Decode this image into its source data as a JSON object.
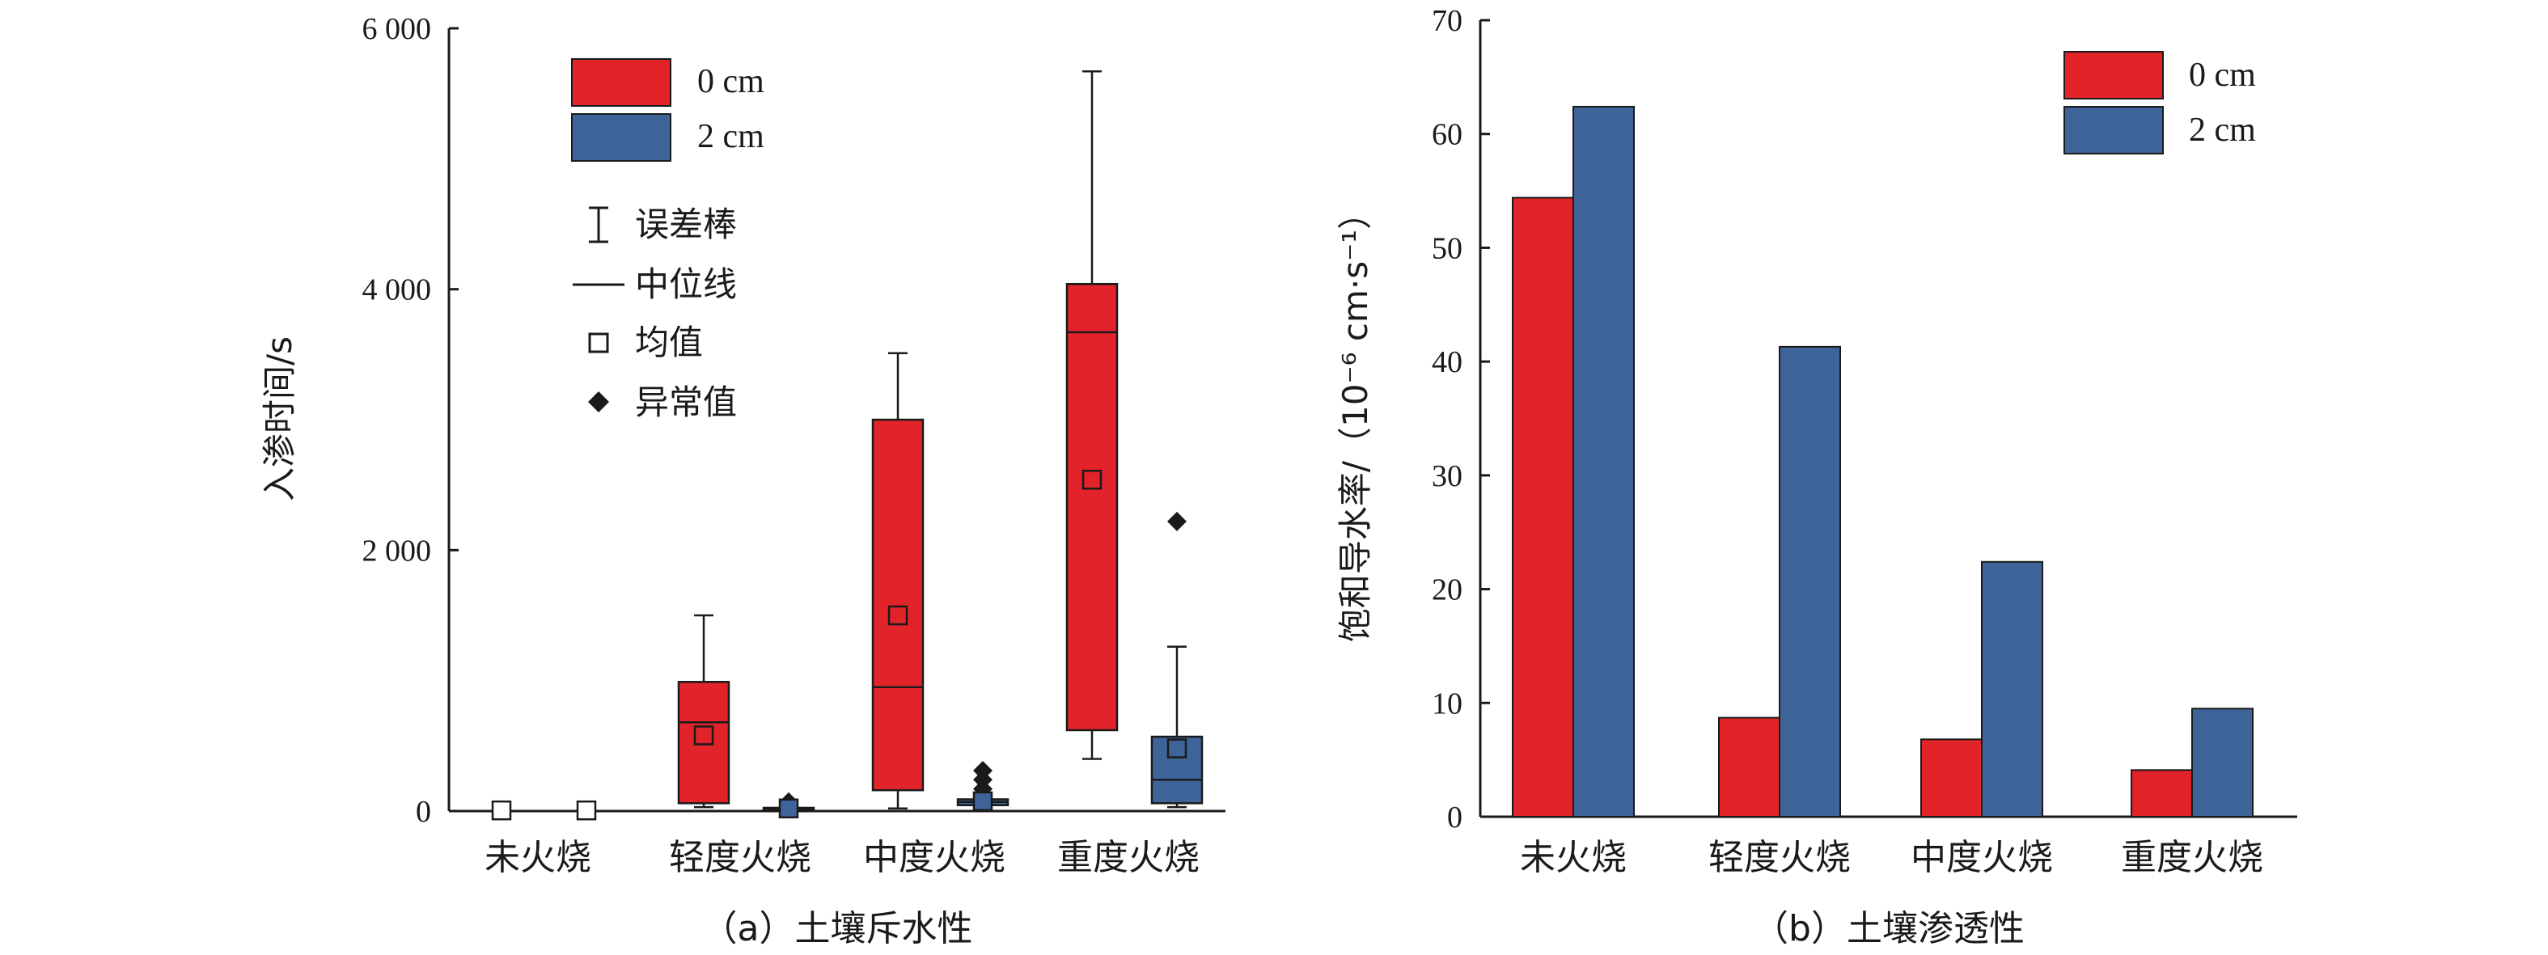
{
  "colors": {
    "red": "#e3232a",
    "blue": "#3f6499",
    "edge": "#1a1a1a"
  },
  "legend_swatches": {
    "s0": "0 cm",
    "s1": "2 cm"
  },
  "legend_symbols": {
    "error": "误差棒",
    "median": "中位线",
    "mean": "均值",
    "outlier": "异常值",
    "icons": [
      "error-bar-icon",
      "median-line-icon",
      "mean-square-icon",
      "outlier-diamond-icon"
    ]
  },
  "chart_data": [
    {
      "type": "box",
      "caption": "（a）土壤斥水性",
      "ylabel": "入渗时间/s",
      "ylim": [
        0,
        6000
      ],
      "yticks": [
        0,
        2000,
        4000,
        6000
      ],
      "ytick_labels": [
        "0",
        "2 000",
        "4 000",
        "6 000"
      ],
      "categories": [
        "未火烧",
        "轻度火烧",
        "中度火烧",
        "重度火烧"
      ],
      "series": [
        {
          "name": "0 cm",
          "color": "#e3232a",
          "boxes": [
            {
              "min": 0,
              "q1": 0,
              "median": 0,
              "q3": 0,
              "max": 0,
              "mean": 5,
              "outliers": [
                10
              ]
            },
            {
              "min": 30,
              "q1": 60,
              "median": 680,
              "q3": 990,
              "max": 1500,
              "mean": 580,
              "outliers": []
            },
            {
              "min": 20,
              "q1": 160,
              "median": 950,
              "q3": 3000,
              "max": 3510,
              "mean": 1500,
              "outliers": []
            },
            {
              "min": 400,
              "q1": 620,
              "median": 3670,
              "q3": 4040,
              "max": 5670,
              "mean": 2540,
              "outliers": []
            }
          ]
        },
        {
          "name": "2 cm",
          "color": "#3f6499",
          "boxes": [
            {
              "min": 0,
              "q1": 0,
              "median": 0,
              "q3": 0,
              "max": 0,
              "mean": 5,
              "outliers": []
            },
            {
              "min": 5,
              "q1": 10,
              "median": 15,
              "q3": 25,
              "max": 30,
              "mean": 20,
              "outliers": [
                50,
                70
              ]
            },
            {
              "min": 20,
              "q1": 45,
              "median": 70,
              "q3": 90,
              "max": 110,
              "mean": 75,
              "outliers": [
                170,
                240,
                310
              ]
            },
            {
              "min": 30,
              "q1": 60,
              "median": 240,
              "q3": 570,
              "max": 1260,
              "mean": 480,
              "outliers": [
                2220
              ]
            }
          ]
        }
      ]
    },
    {
      "type": "bar",
      "caption": "（b）土壤渗透性",
      "ylabel": "饱和导水率/（10⁻⁶ cm·s⁻¹）",
      "ylim": [
        0,
        70
      ],
      "yticks": [
        0,
        10,
        20,
        30,
        40,
        50,
        60,
        70
      ],
      "categories": [
        "未火烧",
        "轻度火烧",
        "中度火烧",
        "重度火烧"
      ],
      "series": [
        {
          "name": "0 cm",
          "color": "#e3232a",
          "values": [
            54.4,
            8.7,
            6.8,
            4.1
          ]
        },
        {
          "name": "2 cm",
          "color": "#3f6499",
          "values": [
            62.4,
            41.3,
            22.4,
            9.5
          ]
        }
      ]
    }
  ]
}
